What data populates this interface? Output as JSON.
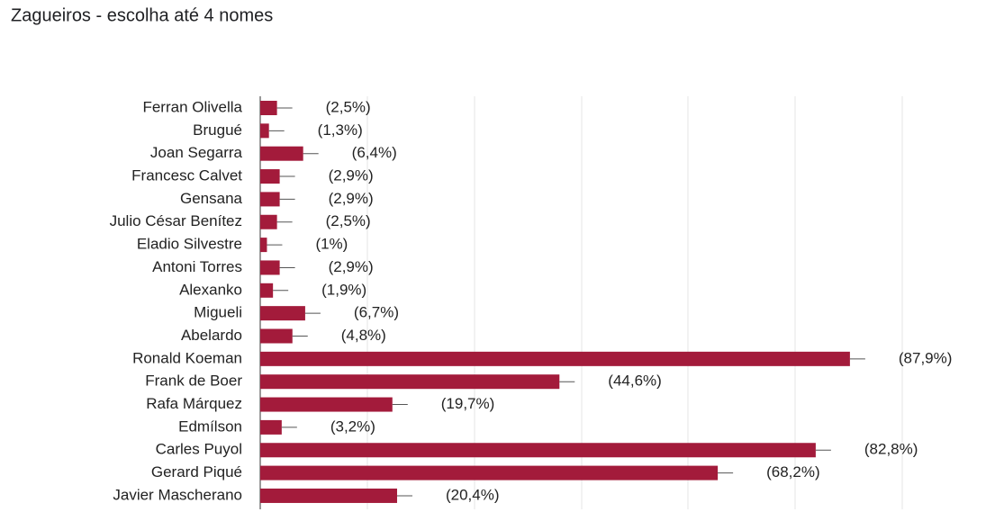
{
  "chart_data": {
    "type": "bar",
    "orientation": "horizontal",
    "title": "Zagueiros - escolha até 4 nomes",
    "categories": [
      "Ferran Olivella",
      "Brugué",
      "Joan Segarra",
      "Francesc Calvet",
      "Gensana",
      "Julio César Benítez",
      "Eladio Silvestre",
      "Antoni Torres",
      "Alexanko",
      "Migueli",
      "Abelardo",
      "Ronald Koeman",
      "Frank de Boer",
      "Rafa Márquez",
      "Edmílson",
      "Carles Puyol",
      "Gerard Piqué",
      "Javier Mascherano"
    ],
    "values": [
      2.5,
      1.3,
      6.4,
      2.9,
      2.9,
      2.5,
      1,
      2.9,
      1.9,
      6.7,
      4.8,
      87.9,
      44.6,
      19.7,
      3.2,
      82.8,
      68.2,
      20.4
    ],
    "value_labels": [
      "(2,5%)",
      "(1,3%)",
      "(6,4%)",
      "(2,9%)",
      "(2,9%)",
      "(2,5%)",
      "(1%)",
      "(2,9%)",
      "(1,9%)",
      "(6,7%)",
      "(4,8%)",
      "(87,9%)",
      "(44,6%)",
      "(19,7%)",
      "(3,2%)",
      "(82,8%)",
      "(68,2%)",
      "(20,4%)"
    ],
    "color": "#a31b3b",
    "xlim": [
      0,
      95.7
    ]
  }
}
